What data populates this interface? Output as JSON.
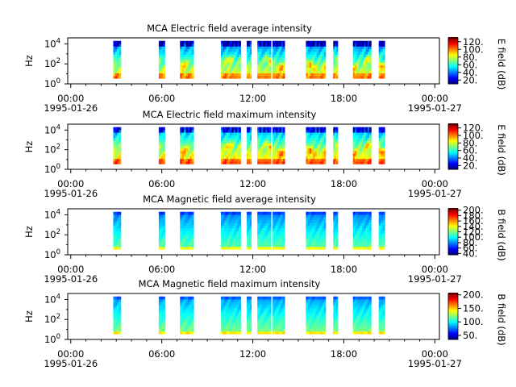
{
  "chart_data": [
    {
      "type": "heatmap",
      "title": "MCA  Electric field average intensity",
      "ylabel": "Hz",
      "colorbar_label": "E field (dB)",
      "colorbar_ticks": [
        "20.",
        "40.",
        "60.",
        "80.",
        "100.",
        "120."
      ],
      "colorbar_range": [
        10,
        130
      ],
      "y_ticks": [
        {
          "label": "10",
          "exp": "0"
        },
        {
          "label": "10",
          "exp": "2"
        },
        {
          "label": "10",
          "exp": "4"
        }
      ],
      "x_ticks": [
        {
          "time": "00:00",
          "date": "1995-01-26"
        },
        {
          "time": "06:00",
          "date": ""
        },
        {
          "time": "12:00",
          "date": ""
        },
        {
          "time": "18:00",
          "date": ""
        },
        {
          "time": "00:00",
          "date": "1995-01-27"
        }
      ],
      "x_range_hours": [
        -0.2,
        24.3
      ],
      "y_range_log10": [
        0,
        4.6
      ],
      "field": "E",
      "mode": "avg",
      "segments_hours": [
        [
          2.8,
          3.3
        ],
        [
          5.8,
          6.2
        ],
        [
          7.2,
          8.1
        ],
        [
          9.9,
          11.2
        ],
        [
          11.6,
          11.9
        ],
        [
          12.3,
          13.2
        ],
        [
          13.3,
          14.1
        ],
        [
          15.5,
          16.8
        ],
        [
          17.3,
          17.6
        ],
        [
          18.6,
          19.8
        ],
        [
          20.3,
          20.7
        ]
      ]
    },
    {
      "type": "heatmap",
      "title": "MCA  Electric field maximum intensity",
      "ylabel": "Hz",
      "colorbar_label": "E field (dB)",
      "colorbar_ticks": [
        "20.",
        "40.",
        "60.",
        "80.",
        "100.",
        "120."
      ],
      "colorbar_range": [
        10,
        130
      ],
      "y_ticks": [
        {
          "label": "10",
          "exp": "0"
        },
        {
          "label": "10",
          "exp": "2"
        },
        {
          "label": "10",
          "exp": "4"
        }
      ],
      "x_ticks": [
        {
          "time": "00:00",
          "date": "1995-01-26"
        },
        {
          "time": "06:00",
          "date": ""
        },
        {
          "time": "12:00",
          "date": ""
        },
        {
          "time": "18:00",
          "date": ""
        },
        {
          "time": "00:00",
          "date": "1995-01-27"
        }
      ],
      "x_range_hours": [
        -0.2,
        24.3
      ],
      "y_range_log10": [
        0,
        4.6
      ],
      "field": "E",
      "mode": "max",
      "segments_hours": [
        [
          2.8,
          3.3
        ],
        [
          5.8,
          6.2
        ],
        [
          7.2,
          8.1
        ],
        [
          9.9,
          11.2
        ],
        [
          11.6,
          11.9
        ],
        [
          12.3,
          13.2
        ],
        [
          13.3,
          14.1
        ],
        [
          15.5,
          16.8
        ],
        [
          17.3,
          17.6
        ],
        [
          18.6,
          19.8
        ],
        [
          20.3,
          20.7
        ]
      ]
    },
    {
      "type": "heatmap",
      "title": "MCA  Magnetic field average intensity",
      "ylabel": "Hz",
      "colorbar_label": "B field (dB)",
      "colorbar_ticks": [
        "40.",
        "60.",
        "80.",
        "100.",
        "120.",
        "140.",
        "160.",
        "180.",
        "200."
      ],
      "colorbar_range": [
        35,
        205
      ],
      "y_ticks": [
        {
          "label": "10",
          "exp": "0"
        },
        {
          "label": "10",
          "exp": "2"
        },
        {
          "label": "10",
          "exp": "4"
        }
      ],
      "x_ticks": [
        {
          "time": "00:00",
          "date": "1995-01-26"
        },
        {
          "time": "06:00",
          "date": ""
        },
        {
          "time": "12:00",
          "date": ""
        },
        {
          "time": "18:00",
          "date": ""
        },
        {
          "time": "00:00",
          "date": "1995-01-27"
        }
      ],
      "x_range_hours": [
        -0.2,
        24.3
      ],
      "y_range_log10": [
        0,
        4.6
      ],
      "field": "B",
      "mode": "avg",
      "segments_hours": [
        [
          2.8,
          3.3
        ],
        [
          5.8,
          6.2
        ],
        [
          7.2,
          8.1
        ],
        [
          9.9,
          11.2
        ],
        [
          11.6,
          11.9
        ],
        [
          12.3,
          13.2
        ],
        [
          13.3,
          14.1
        ],
        [
          15.5,
          16.8
        ],
        [
          17.3,
          17.6
        ],
        [
          18.6,
          19.8
        ],
        [
          20.3,
          20.7
        ]
      ]
    },
    {
      "type": "heatmap",
      "title": "MCA  Magnetic field maximum intensity",
      "ylabel": "Hz",
      "colorbar_label": "B field (dB)",
      "colorbar_ticks": [
        "50.",
        "100.",
        "150.",
        "200."
      ],
      "colorbar_range": [
        35,
        205
      ],
      "y_ticks": [
        {
          "label": "10",
          "exp": "0"
        },
        {
          "label": "10",
          "exp": "2"
        },
        {
          "label": "10",
          "exp": "4"
        }
      ],
      "x_ticks": [
        {
          "time": "00:00",
          "date": "1995-01-26"
        },
        {
          "time": "06:00",
          "date": ""
        },
        {
          "time": "12:00",
          "date": ""
        },
        {
          "time": "18:00",
          "date": ""
        },
        {
          "time": "00:00",
          "date": "1995-01-27"
        }
      ],
      "x_range_hours": [
        -0.2,
        24.3
      ],
      "y_range_log10": [
        0,
        4.6
      ],
      "field": "B",
      "mode": "max",
      "segments_hours": [
        [
          2.8,
          3.3
        ],
        [
          5.8,
          6.2
        ],
        [
          7.2,
          8.1
        ],
        [
          9.9,
          11.2
        ],
        [
          11.6,
          11.9
        ],
        [
          12.3,
          13.2
        ],
        [
          13.3,
          14.1
        ],
        [
          15.5,
          16.8
        ],
        [
          17.3,
          17.6
        ],
        [
          18.6,
          19.8
        ],
        [
          20.3,
          20.7
        ]
      ]
    }
  ]
}
